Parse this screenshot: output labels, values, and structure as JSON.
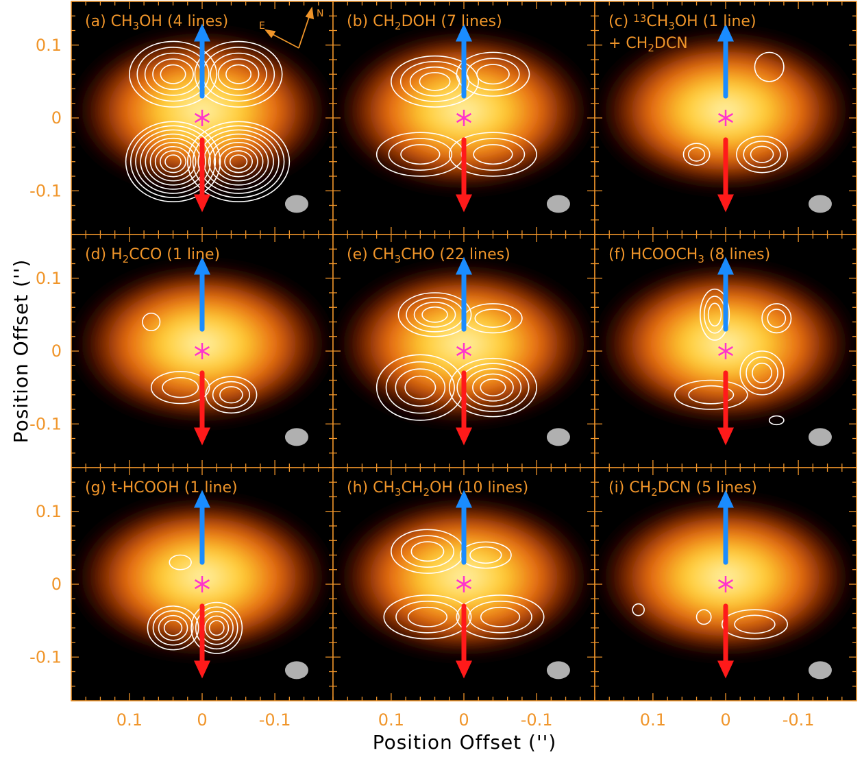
{
  "figure": {
    "xlabel": "Position Offset ('')",
    "ylabel": "Position Offset ('')"
  },
  "colors": {
    "frame": "#f0952a",
    "blue_arrow": "#1a8cff",
    "red_arrow": "#ff1a1a",
    "protostar": "#ff33cc",
    "contour": "#ffffff",
    "beam": "#b0b0b0"
  },
  "icons": [
    "compass-icon",
    "protostar-marker-icon",
    "blueshift-arrow-icon",
    "redshift-arrow-icon",
    "beam-ellipse-icon"
  ],
  "compass": {
    "east": "E",
    "north": "N"
  },
  "chart_data": {
    "type": "heatmap",
    "description_axes": {
      "x_direction": "decreasing to the right"
    },
    "xlim": [
      0.18,
      -0.18
    ],
    "ylim": [
      -0.16,
      0.16
    ],
    "x_ticks": [
      "0.1",
      "0",
      "-0.1"
    ],
    "x_tick_values": [
      0.1,
      0,
      -0.1
    ],
    "y_ticks": [
      "0.1",
      "0",
      "-0.1"
    ],
    "y_tick_values": [
      0.1,
      0,
      -0.1
    ],
    "panels": [
      {
        "id": "a",
        "title": [
          {
            "t": "(a) CH"
          },
          {
            "t": "3",
            "s": "sub"
          },
          {
            "t": "OH (4 lines)"
          }
        ],
        "title2": null,
        "contours": [
          {
            "x": 0.04,
            "y": 0.06,
            "rx": 0.06,
            "ry": 0.045,
            "n": 5
          },
          {
            "x": -0.05,
            "y": 0.06,
            "rx": 0.06,
            "ry": 0.045,
            "n": 5
          },
          {
            "x": 0.04,
            "y": -0.06,
            "rx": 0.065,
            "ry": 0.055,
            "n": 9
          },
          {
            "x": -0.05,
            "y": -0.06,
            "rx": 0.07,
            "ry": 0.055,
            "n": 9
          }
        ]
      },
      {
        "id": "b",
        "title": [
          {
            "t": "(b) CH"
          },
          {
            "t": "2",
            "s": "sub"
          },
          {
            "t": "DOH (7 lines)"
          }
        ],
        "title2": null,
        "contours": [
          {
            "x": 0.04,
            "y": 0.05,
            "rx": 0.06,
            "ry": 0.035,
            "n": 4
          },
          {
            "x": -0.04,
            "y": 0.06,
            "rx": 0.05,
            "ry": 0.03,
            "n": 3
          },
          {
            "x": 0.06,
            "y": -0.05,
            "rx": 0.06,
            "ry": 0.03,
            "n": 3
          },
          {
            "x": -0.04,
            "y": -0.05,
            "rx": 0.06,
            "ry": 0.03,
            "n": 3
          }
        ]
      },
      {
        "id": "c",
        "title": [
          {
            "t": "(c) "
          },
          {
            "t": "13",
            "s": "sup"
          },
          {
            "t": "CH"
          },
          {
            "t": "3",
            "s": "sub"
          },
          {
            "t": "OH (1 line)"
          }
        ],
        "title2": [
          {
            "t": "+ CH"
          },
          {
            "t": "2",
            "s": "sub"
          },
          {
            "t": "DCN"
          }
        ],
        "contours": [
          {
            "x": -0.06,
            "y": 0.07,
            "rx": 0.02,
            "ry": 0.02,
            "n": 1
          },
          {
            "x": 0.04,
            "y": -0.05,
            "rx": 0.018,
            "ry": 0.015,
            "n": 2
          },
          {
            "x": -0.05,
            "y": -0.05,
            "rx": 0.035,
            "ry": 0.025,
            "n": 3
          }
        ]
      },
      {
        "id": "d",
        "title": [
          {
            "t": "(d) H"
          },
          {
            "t": "2",
            "s": "sub"
          },
          {
            "t": "CCO (1 line)"
          }
        ],
        "title2": null,
        "contours": [
          {
            "x": 0.07,
            "y": 0.04,
            "rx": 0.012,
            "ry": 0.012,
            "n": 1
          },
          {
            "x": 0.03,
            "y": -0.05,
            "rx": 0.04,
            "ry": 0.022,
            "n": 2
          },
          {
            "x": -0.04,
            "y": -0.06,
            "rx": 0.035,
            "ry": 0.025,
            "n": 3
          }
        ]
      },
      {
        "id": "e",
        "title": [
          {
            "t": "(e) CH"
          },
          {
            "t": "3",
            "s": "sub"
          },
          {
            "t": "CHO (22 lines)"
          }
        ],
        "title2": null,
        "contours": [
          {
            "x": 0.04,
            "y": 0.05,
            "rx": 0.05,
            "ry": 0.03,
            "n": 4
          },
          {
            "x": -0.04,
            "y": 0.045,
            "rx": 0.04,
            "ry": 0.02,
            "n": 2
          },
          {
            "x": 0.06,
            "y": -0.05,
            "rx": 0.06,
            "ry": 0.045,
            "n": 4
          },
          {
            "x": -0.04,
            "y": -0.05,
            "rx": 0.06,
            "ry": 0.04,
            "n": 5
          }
        ]
      },
      {
        "id": "f",
        "title": [
          {
            "t": "(f) HCOOCH"
          },
          {
            "t": "3",
            "s": "sub"
          },
          {
            "t": " (8 lines)"
          }
        ],
        "title2": null,
        "contours": [
          {
            "x": 0.015,
            "y": 0.05,
            "rx": 0.02,
            "ry": 0.035,
            "n": 3
          },
          {
            "x": -0.07,
            "y": 0.045,
            "rx": 0.02,
            "ry": 0.02,
            "n": 2
          },
          {
            "x": -0.05,
            "y": -0.03,
            "rx": 0.03,
            "ry": 0.03,
            "n": 3
          },
          {
            "x": 0.02,
            "y": -0.06,
            "rx": 0.05,
            "ry": 0.02,
            "n": 2
          },
          {
            "x": -0.07,
            "y": -0.095,
            "rx": 0.01,
            "ry": 0.006,
            "n": 1
          }
        ]
      },
      {
        "id": "g",
        "title": [
          {
            "t": "(g) t-HCOOH (1 line)"
          }
        ],
        "title2": null,
        "contours": [
          {
            "x": 0.03,
            "y": 0.03,
            "rx": 0.015,
            "ry": 0.01,
            "n": 1
          },
          {
            "x": 0.04,
            "y": -0.06,
            "rx": 0.035,
            "ry": 0.03,
            "n": 4
          },
          {
            "x": -0.02,
            "y": -0.06,
            "rx": 0.035,
            "ry": 0.035,
            "n": 5
          }
        ]
      },
      {
        "id": "h",
        "title": [
          {
            "t": "(h) CH"
          },
          {
            "t": "3",
            "s": "sub"
          },
          {
            "t": "CH"
          },
          {
            "t": "2",
            "s": "sub"
          },
          {
            "t": "OH (10 lines)"
          }
        ],
        "title2": null,
        "contours": [
          {
            "x": 0.05,
            "y": 0.045,
            "rx": 0.05,
            "ry": 0.03,
            "n": 3
          },
          {
            "x": -0.03,
            "y": 0.04,
            "rx": 0.035,
            "ry": 0.018,
            "n": 2
          },
          {
            "x": 0.05,
            "y": -0.045,
            "rx": 0.06,
            "ry": 0.03,
            "n": 3
          },
          {
            "x": -0.05,
            "y": -0.045,
            "rx": 0.06,
            "ry": 0.03,
            "n": 3
          }
        ]
      },
      {
        "id": "i",
        "title": [
          {
            "t": "(i) CH"
          },
          {
            "t": "2",
            "s": "sub"
          },
          {
            "t": "DCN (5 lines)"
          }
        ],
        "title2": null,
        "contours": [
          {
            "x": 0.12,
            "y": -0.035,
            "rx": 0.008,
            "ry": 0.008,
            "n": 1
          },
          {
            "x": 0.03,
            "y": -0.045,
            "rx": 0.01,
            "ry": 0.01,
            "n": 1
          },
          {
            "x": -0.04,
            "y": -0.055,
            "rx": 0.045,
            "ry": 0.02,
            "n": 2
          }
        ]
      }
    ],
    "protostar": {
      "x": 0,
      "y": 0
    },
    "outflow": {
      "blue": {
        "x": 0,
        "y_from": 0.03,
        "y_to": 0.12
      },
      "red": {
        "x": 0,
        "y_from": -0.03,
        "y_to": -0.12
      }
    },
    "continuum": {
      "center_x": 0,
      "center_y": 0.01,
      "half_width": 0.15,
      "half_height": 0.045
    },
    "beam": {
      "x": -0.13,
      "y": -0.118
    }
  }
}
